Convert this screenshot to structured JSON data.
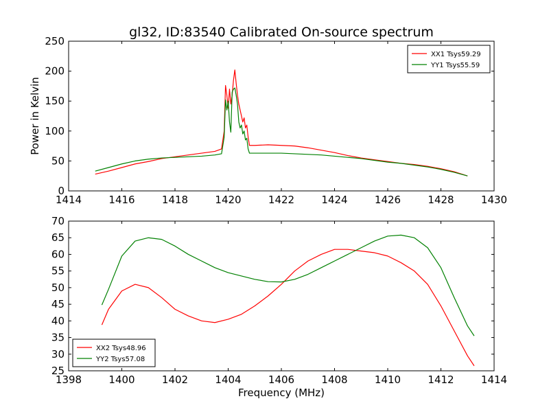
{
  "figure": {
    "title": "gl32, ID:83540 Calibrated On-source spectrum"
  },
  "chart_data": [
    {
      "type": "line",
      "title": "gl32, ID:83540 Calibrated On-source spectrum",
      "xlabel": "",
      "ylabel": "Power in Kelvin",
      "xlim": [
        1414,
        1430
      ],
      "ylim": [
        0,
        250
      ],
      "xticks": [
        1414,
        1416,
        1418,
        1420,
        1422,
        1424,
        1426,
        1428,
        1430
      ],
      "yticks": [
        0,
        50,
        100,
        150,
        200,
        250
      ],
      "grid": false,
      "legend_position": "top-right",
      "series": [
        {
          "name": "XX1 Tsys59.29",
          "color": "#ff0000",
          "points": [
            [
              1415.0,
              28
            ],
            [
              1415.5,
              33
            ],
            [
              1416.0,
              39
            ],
            [
              1416.5,
              45
            ],
            [
              1417.0,
              49
            ],
            [
              1417.5,
              54
            ],
            [
              1418.0,
              57
            ],
            [
              1418.5,
              60
            ],
            [
              1419.0,
              63
            ],
            [
              1419.5,
              66
            ],
            [
              1419.75,
              70
            ],
            [
              1419.85,
              100
            ],
            [
              1419.9,
              176
            ],
            [
              1419.95,
              160
            ],
            [
              1420.0,
              138
            ],
            [
              1420.05,
              170
            ],
            [
              1420.1,
              145
            ],
            [
              1420.15,
              160
            ],
            [
              1420.2,
              185
            ],
            [
              1420.25,
              202
            ],
            [
              1420.3,
              180
            ],
            [
              1420.35,
              160
            ],
            [
              1420.4,
              145
            ],
            [
              1420.45,
              135
            ],
            [
              1420.5,
              125
            ],
            [
              1420.55,
              115
            ],
            [
              1420.6,
              122
            ],
            [
              1420.65,
              105
            ],
            [
              1420.7,
              110
            ],
            [
              1420.75,
              90
            ],
            [
              1420.8,
              76
            ],
            [
              1421.0,
              76
            ],
            [
              1421.5,
              77
            ],
            [
              1422.0,
              76
            ],
            [
              1422.5,
              75
            ],
            [
              1423.0,
              72
            ],
            [
              1423.5,
              68
            ],
            [
              1424.0,
              64
            ],
            [
              1424.5,
              59
            ],
            [
              1425.0,
              55
            ],
            [
              1425.5,
              52
            ],
            [
              1426.0,
              49
            ],
            [
              1426.5,
              46
            ],
            [
              1427.0,
              44
            ],
            [
              1427.5,
              41
            ],
            [
              1428.0,
              37
            ],
            [
              1428.5,
              32
            ],
            [
              1429.0,
              25
            ]
          ]
        },
        {
          "name": "YY1 Tsys55.59",
          "color": "#008000",
          "points": [
            [
              1415.0,
              33
            ],
            [
              1415.5,
              39
            ],
            [
              1416.0,
              45
            ],
            [
              1416.5,
              50
            ],
            [
              1417.0,
              53
            ],
            [
              1417.5,
              55
            ],
            [
              1418.0,
              56
            ],
            [
              1418.5,
              57
            ],
            [
              1419.0,
              58
            ],
            [
              1419.5,
              60
            ],
            [
              1419.75,
              62
            ],
            [
              1419.85,
              90
            ],
            [
              1419.9,
              152
            ],
            [
              1419.95,
              135
            ],
            [
              1420.0,
              150
            ],
            [
              1420.05,
              115
            ],
            [
              1420.1,
              98
            ],
            [
              1420.15,
              165
            ],
            [
              1420.2,
              170
            ],
            [
              1420.25,
              172
            ],
            [
              1420.3,
              160
            ],
            [
              1420.35,
              145
            ],
            [
              1420.4,
              115
            ],
            [
              1420.45,
              105
            ],
            [
              1420.5,
              110
            ],
            [
              1420.55,
              95
            ],
            [
              1420.6,
              100
            ],
            [
              1420.65,
              85
            ],
            [
              1420.7,
              88
            ],
            [
              1420.75,
              70
            ],
            [
              1420.8,
              63
            ],
            [
              1421.0,
              63
            ],
            [
              1421.5,
              63
            ],
            [
              1422.0,
              63
            ],
            [
              1422.5,
              62
            ],
            [
              1423.0,
              61
            ],
            [
              1423.5,
              60
            ],
            [
              1424.0,
              58
            ],
            [
              1424.5,
              56
            ],
            [
              1425.0,
              54
            ],
            [
              1425.5,
              51
            ],
            [
              1426.0,
              48
            ],
            [
              1426.5,
              46
            ],
            [
              1427.0,
              43
            ],
            [
              1427.5,
              40
            ],
            [
              1428.0,
              36
            ],
            [
              1428.5,
              31
            ],
            [
              1429.0,
              25
            ]
          ]
        }
      ]
    },
    {
      "type": "line",
      "title": "",
      "xlabel": "Frequency (MHz)",
      "ylabel": "",
      "xlim": [
        1398,
        1414
      ],
      "ylim": [
        25,
        70
      ],
      "xticks": [
        1398,
        1400,
        1402,
        1404,
        1406,
        1408,
        1410,
        1412,
        1414
      ],
      "yticks": [
        25,
        30,
        35,
        40,
        45,
        50,
        55,
        60,
        65,
        70
      ],
      "grid": false,
      "legend_position": "bottom-left",
      "series": [
        {
          "name": "XX2 Tsys48.96",
          "color": "#ff0000",
          "points": [
            [
              1399.25,
              38.8
            ],
            [
              1399.5,
              43.5
            ],
            [
              1400.0,
              49.0
            ],
            [
              1400.5,
              51.0
            ],
            [
              1401.0,
              50.0
            ],
            [
              1401.5,
              47.0
            ],
            [
              1402.0,
              43.5
            ],
            [
              1402.5,
              41.5
            ],
            [
              1403.0,
              40.0
            ],
            [
              1403.5,
              39.5
            ],
            [
              1404.0,
              40.5
            ],
            [
              1404.5,
              42.0
            ],
            [
              1405.0,
              44.5
            ],
            [
              1405.5,
              47.5
            ],
            [
              1406.0,
              51.0
            ],
            [
              1406.5,
              55.0
            ],
            [
              1407.0,
              58.0
            ],
            [
              1407.5,
              60.0
            ],
            [
              1408.0,
              61.5
            ],
            [
              1408.5,
              61.5
            ],
            [
              1409.0,
              61.0
            ],
            [
              1409.5,
              60.5
            ],
            [
              1410.0,
              59.5
            ],
            [
              1410.5,
              57.5
            ],
            [
              1411.0,
              55.0
            ],
            [
              1411.5,
              51.0
            ],
            [
              1412.0,
              44.5
            ],
            [
              1412.5,
              37.0
            ],
            [
              1413.0,
              29.5
            ],
            [
              1413.25,
              26.5
            ]
          ]
        },
        {
          "name": "YY2 Tsys57.08",
          "color": "#008000",
          "points": [
            [
              1399.25,
              44.8
            ],
            [
              1399.5,
              49.5
            ],
            [
              1400.0,
              59.5
            ],
            [
              1400.5,
              64.0
            ],
            [
              1401.0,
              65.0
            ],
            [
              1401.5,
              64.5
            ],
            [
              1402.0,
              62.5
            ],
            [
              1402.5,
              60.0
            ],
            [
              1403.0,
              58.0
            ],
            [
              1403.5,
              56.0
            ],
            [
              1404.0,
              54.5
            ],
            [
              1404.5,
              53.5
            ],
            [
              1405.0,
              52.5
            ],
            [
              1405.5,
              51.8
            ],
            [
              1406.0,
              51.7
            ],
            [
              1406.5,
              52.5
            ],
            [
              1407.0,
              54.0
            ],
            [
              1407.5,
              56.0
            ],
            [
              1408.0,
              58.0
            ],
            [
              1408.5,
              60.0
            ],
            [
              1409.0,
              62.0
            ],
            [
              1409.5,
              64.0
            ],
            [
              1410.0,
              65.5
            ],
            [
              1410.5,
              65.8
            ],
            [
              1411.0,
              65.0
            ],
            [
              1411.5,
              62.0
            ],
            [
              1412.0,
              56.0
            ],
            [
              1412.5,
              47.0
            ],
            [
              1413.0,
              38.5
            ],
            [
              1413.25,
              35.5
            ]
          ]
        }
      ]
    }
  ]
}
